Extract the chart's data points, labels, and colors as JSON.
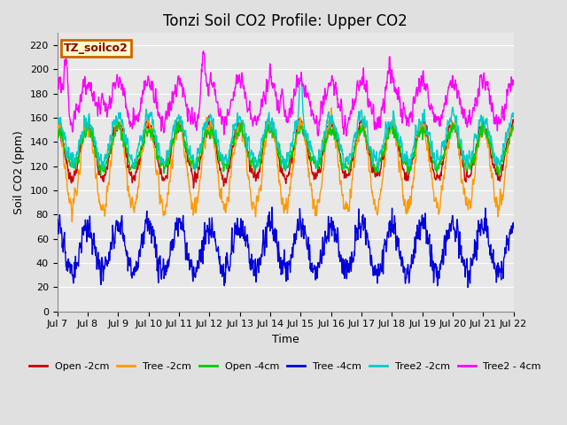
{
  "title": "Tonzi Soil CO2 Profile: Upper CO2",
  "xlabel": "Time",
  "ylabel": "Soil CO2 (ppm)",
  "legend_label": "TZ_soilco2",
  "ylim": [
    0,
    230
  ],
  "yticks": [
    0,
    20,
    40,
    60,
    80,
    100,
    120,
    140,
    160,
    180,
    200,
    220
  ],
  "xtick_labels": [
    "Jul 7",
    "Jul 8",
    "Jul 9",
    "Jul 10",
    "Jul 11",
    "Jul 12",
    "Jul 13",
    "Jul 14",
    "Jul 15",
    "Jul 16",
    "Jul 17",
    "Jul 18",
    "Jul 19",
    "Jul 20",
    "Jul 21",
    "Jul 22"
  ],
  "series": [
    {
      "label": "Open -2cm",
      "color": "#cc0000",
      "lw": 1.0
    },
    {
      "label": "Tree -2cm",
      "color": "#ff9900",
      "lw": 1.0
    },
    {
      "label": "Open -4cm",
      "color": "#00cc00",
      "lw": 1.0
    },
    {
      "label": "Tree -4cm",
      "color": "#0000dd",
      "lw": 1.0
    },
    {
      "label": "Tree2 -2cm",
      "color": "#00cccc",
      "lw": 1.0
    },
    {
      "label": "Tree2 - 4cm",
      "color": "#ff00ff",
      "lw": 1.0
    }
  ],
  "bg_color": "#e0e0e0",
  "plot_bg_color": "#e8e8e8",
  "grid_color": "#ffffff",
  "title_fontsize": 12,
  "axis_label_fontsize": 9,
  "tick_fontsize": 8,
  "legend_fontsize": 8,
  "n_days": 15,
  "pts_per_day": 96,
  "figsize": [
    6.4,
    4.8
  ],
  "dpi": 100
}
